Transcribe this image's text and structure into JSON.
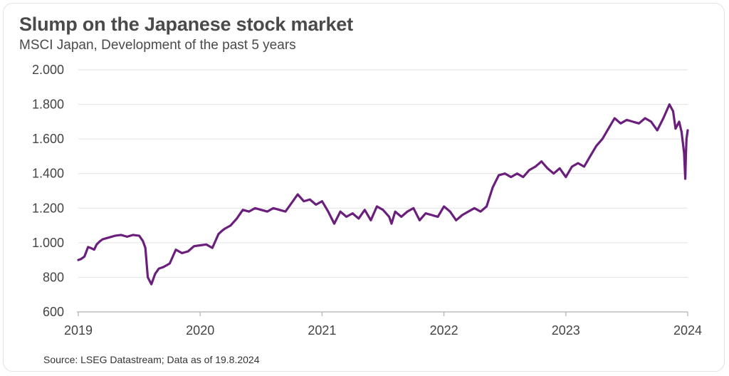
{
  "header": {
    "title": "Slump on the Japanese stock market",
    "subtitle": "MSCI Japan, Development of the past 5 years"
  },
  "footer": {
    "source": "Source: LSEG Datastream; Data as of 19.8.2024"
  },
  "colors": {
    "line": "#6b1f7c",
    "grid": "#e2e2e2",
    "axis": "#bdbdbd"
  },
  "chart_data": {
    "type": "line",
    "title": "Slump on the Japanese stock market",
    "subtitle": "MSCI Japan, Development of the past 5 years",
    "xlabel": "",
    "ylabel": "",
    "xlim": [
      2019.0,
      2024.0
    ],
    "ylim": [
      600,
      2000
    ],
    "yticks": [
      600,
      800,
      1000,
      1200,
      1400,
      1600,
      1800,
      2000
    ],
    "ytick_labels": [
      "600",
      "800",
      "1.000",
      "1.200",
      "1.400",
      "1.600",
      "1.800",
      "2.000"
    ],
    "xticks": [
      2019,
      2020,
      2021,
      2022,
      2023,
      2024
    ],
    "xtick_labels": [
      "2019",
      "2020",
      "2021",
      "2022",
      "2023",
      "2024"
    ],
    "grid": "horizontal",
    "legend": "none",
    "series": [
      {
        "x": [
          2019.0,
          2019.02,
          2019.05,
          2019.08,
          2019.1,
          2019.13,
          2019.15,
          2019.18,
          2019.2,
          2019.25,
          2019.3,
          2019.35,
          2019.4,
          2019.45,
          2019.5,
          2019.53,
          2019.55,
          2019.57,
          2019.6,
          2019.63,
          2019.66,
          2019.7,
          2019.75,
          2019.8,
          2019.85,
          2019.9,
          2019.95,
          2020.0,
          2020.05,
          2020.1,
          2020.15,
          2020.18,
          2020.2,
          2020.25,
          2020.3,
          2020.35,
          2020.4,
          2020.45,
          2020.5,
          2020.55,
          2020.6,
          2020.65,
          2020.7,
          2020.75,
          2020.8,
          2020.85,
          2020.9,
          2020.95,
          2021.0,
          2021.05,
          2021.1,
          2021.15,
          2021.2,
          2021.25,
          2021.3,
          2021.35,
          2021.4,
          2021.45,
          2021.5,
          2021.55,
          2021.57,
          2021.6,
          2021.65,
          2021.7,
          2021.75,
          2021.8,
          2021.85,
          2021.9,
          2021.95,
          2022.0,
          2022.05,
          2022.1,
          2022.15,
          2022.2,
          2022.25,
          2022.3,
          2022.35,
          2022.4,
          2022.45,
          2022.5,
          2022.55,
          2022.6,
          2022.65,
          2022.7,
          2022.75,
          2022.8,
          2022.85,
          2022.9,
          2022.95,
          2023.0,
          2023.05,
          2023.1,
          2023.15,
          2023.2,
          2023.25,
          2023.3,
          2023.35,
          2023.4,
          2023.45,
          2023.5,
          2023.55,
          2023.6,
          2023.65,
          2023.7,
          2023.75,
          2023.8,
          2023.85,
          2023.88,
          2023.9,
          2023.93,
          2023.95,
          2023.97,
          2023.98,
          2023.985,
          2023.99,
          2024.0
        ],
        "y": [
          900,
          905,
          920,
          975,
          970,
          960,
          990,
          1010,
          1020,
          1030,
          1040,
          1045,
          1035,
          1045,
          1040,
          1010,
          970,
          800,
          760,
          820,
          850,
          860,
          880,
          960,
          940,
          950,
          980,
          985,
          990,
          970,
          1050,
          1070,
          1080,
          1100,
          1140,
          1190,
          1180,
          1200,
          1190,
          1180,
          1200,
          1190,
          1180,
          1230,
          1280,
          1240,
          1250,
          1220,
          1240,
          1180,
          1110,
          1180,
          1150,
          1170,
          1140,
          1190,
          1130,
          1210,
          1190,
          1150,
          1110,
          1180,
          1150,
          1180,
          1200,
          1130,
          1170,
          1160,
          1150,
          1210,
          1180,
          1130,
          1160,
          1180,
          1200,
          1180,
          1210,
          1320,
          1390,
          1400,
          1380,
          1400,
          1380,
          1420,
          1440,
          1470,
          1430,
          1400,
          1430,
          1380,
          1440,
          1460,
          1440,
          1500,
          1560,
          1600,
          1660,
          1720,
          1690,
          1710,
          1700,
          1690,
          1720,
          1700,
          1650,
          1720,
          1800,
          1760,
          1660,
          1700,
          1640,
          1520,
          1370,
          1500,
          1600,
          1650
        ]
      }
    ]
  }
}
